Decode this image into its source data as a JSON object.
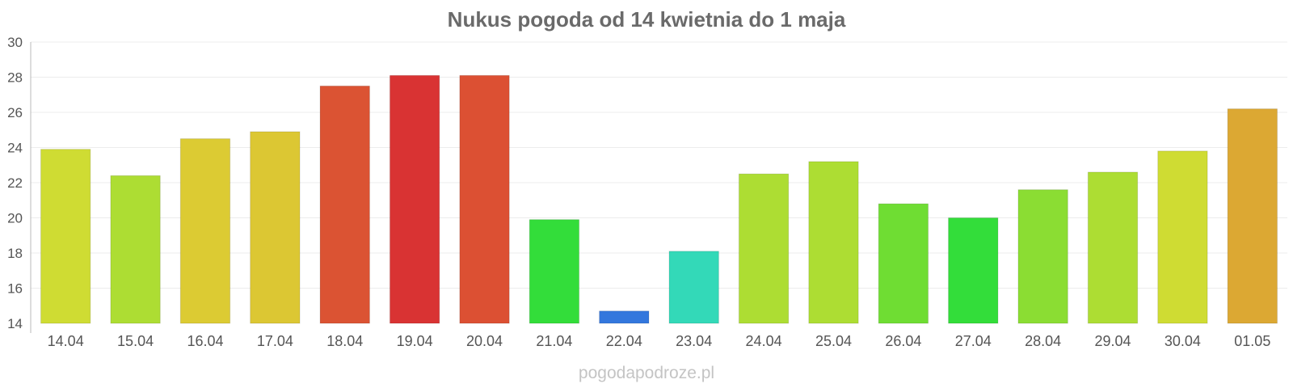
{
  "watermark": "pogodapodroze.pl",
  "chart_data": {
    "type": "bar",
    "title": "Nukus pogoda od 14 kwietnia do 1 maja",
    "xlabel": "",
    "ylabel": "",
    "ylim": [
      14,
      30
    ],
    "yticks": [
      14,
      16,
      18,
      20,
      22,
      24,
      26,
      28,
      30
    ],
    "grid": true,
    "categories": [
      "14.04",
      "15.04",
      "16.04",
      "17.04",
      "18.04",
      "19.04",
      "20.04",
      "21.04",
      "22.04",
      "23.04",
      "24.04",
      "25.04",
      "26.04",
      "27.04",
      "28.04",
      "29.04",
      "30.04",
      "01.05"
    ],
    "values": [
      23.9,
      22.4,
      24.5,
      24.9,
      27.5,
      28.1,
      28.1,
      19.9,
      14.7,
      18.1,
      22.5,
      23.2,
      20.8,
      20.0,
      21.6,
      22.6,
      23.8,
      26.2
    ],
    "colors": [
      "#cfdc33",
      "#addd33",
      "#dccb33",
      "#dcc733",
      "#db5333",
      "#d93333",
      "#dc5033",
      "#33dd3a",
      "#3377dd",
      "#33d9b8",
      "#addd33",
      "#addd33",
      "#6fdd33",
      "#33dd3a",
      "#8bdd33",
      "#addd33",
      "#cfdc33",
      "#dca833"
    ]
  }
}
